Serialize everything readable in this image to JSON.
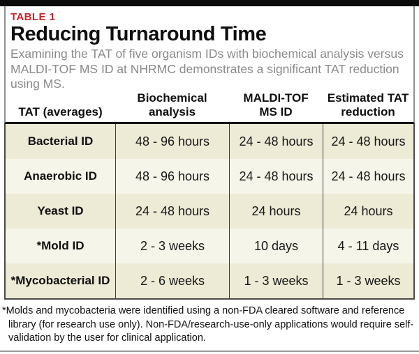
{
  "colors": {
    "accent-red": "#d02028",
    "row-cream": "#edead6",
    "row-light": "#f6f5e9",
    "title-black": "#0e0e0e",
    "desc-gray": "#8a8a8a"
  },
  "header": {
    "kicker": "TABLE 1",
    "title": "Reducing Turnaround Time",
    "description": "Examining the TAT of five organism IDs with biochemical analysis versus MALDI-TOF MS ID at NHRMC demonstrates a significant TAT reduction using MS."
  },
  "table": {
    "columns": [
      "TAT (averages)",
      "Biochemical\nanalysis",
      "MALDI-TOF\nMS ID",
      "Estimated TAT\nreduction"
    ],
    "rows": [
      {
        "label": "Bacterial ID",
        "values": [
          "48 - 96 hours",
          "24 - 48 hours",
          "24 - 48 hours"
        ]
      },
      {
        "label": "Anaerobic ID",
        "values": [
          "48 - 96 hours",
          "24 - 48 hours",
          "24 - 48 hours"
        ]
      },
      {
        "label": "Yeast ID",
        "values": [
          "24 - 48 hours",
          "24 hours",
          "24 hours"
        ]
      },
      {
        "label": "*Mold ID",
        "values": [
          "2 - 3 weeks",
          "10 days",
          "4 - 11 days"
        ]
      },
      {
        "label": "*Mycobacterial ID",
        "values": [
          "2 - 6 weeks",
          "1 - 3 weeks",
          "1 - 3 weeks"
        ]
      }
    ]
  },
  "footnote": "*Molds and mycobacteria were identified using a non-FDA cleared software and reference library (for research use only). Non-FDA/research-use-only applications would require self-validation by the user for clinical application."
}
